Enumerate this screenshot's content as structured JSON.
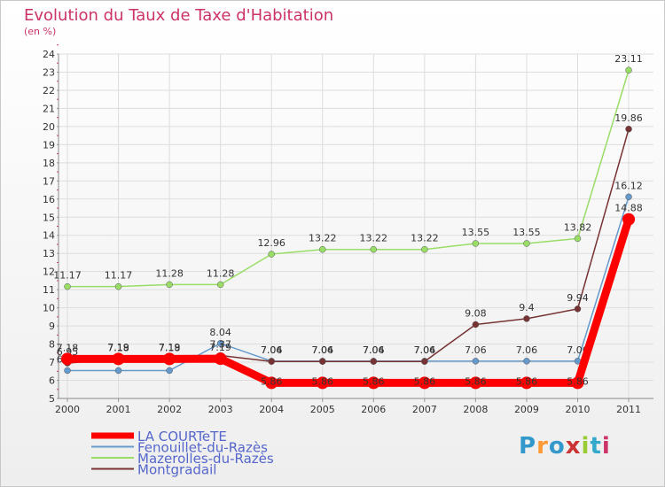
{
  "chart_data": {
    "type": "line",
    "title": "Evolution du Taux de Taxe d'Habitation",
    "subtitle": "(en %)",
    "xlabel": "",
    "ylabel": "",
    "categories": [
      "2000",
      "2001",
      "2002",
      "2003",
      "2004",
      "2005",
      "2006",
      "2007",
      "2008",
      "2009",
      "2010",
      "2011"
    ],
    "ylim": [
      5,
      24
    ],
    "yticks": [
      5,
      6,
      7,
      8,
      9,
      10,
      11,
      12,
      13,
      14,
      15,
      16,
      17,
      18,
      19,
      20,
      21,
      22,
      23,
      24
    ],
    "grid": true,
    "legend_position": "bottom-left",
    "series": [
      {
        "name": "LA COURTeTE",
        "color": "#ff0000",
        "values": [
          7.18,
          7.18,
          7.18,
          7.19,
          5.86,
          5.86,
          5.86,
          5.86,
          5.86,
          5.86,
          5.86,
          14.88
        ],
        "labels": [
          "7.18",
          "7.18",
          "7.18",
          "7.19",
          "5.86",
          "5.86",
          "5.86",
          "5.86",
          "5.86",
          "5.86",
          "5.86",
          "14.88"
        ]
      },
      {
        "name": "Fenouillet-du-Razès",
        "color": "#6699cc",
        "values": [
          6.54,
          6.54,
          6.54,
          8.04,
          7.06,
          7.06,
          7.06,
          7.06,
          7.06,
          7.06,
          7.06,
          16.12
        ],
        "labels": [
          "6.54",
          "6.54",
          "6.54",
          "8.04",
          "7.06",
          "7.06",
          "7.06",
          "7.06",
          "7.06",
          "7.06",
          "7.06",
          "16.12"
        ]
      },
      {
        "name": "Mazerolles-du-Razès",
        "color": "#99dd66",
        "values": [
          11.17,
          11.17,
          11.28,
          11.28,
          12.96,
          13.22,
          13.22,
          13.22,
          13.55,
          13.55,
          13.82,
          23.11
        ],
        "labels": [
          "11.17",
          "11.17",
          "11.28",
          "11.28",
          "12.96",
          "13.22",
          "13.22",
          "13.22",
          "13.55",
          "13.55",
          "13.82",
          "23.11"
        ]
      },
      {
        "name": "Montgradail",
        "color": "#773333",
        "values": [
          6.95,
          7.19,
          7.19,
          7.37,
          7.04,
          7.04,
          7.04,
          7.04,
          9.08,
          9.4,
          9.94,
          19.86
        ],
        "labels": [
          "6.95",
          "7.19",
          "7.19",
          "7.37",
          "7.04",
          "7.04",
          "7.04",
          "7.04",
          "9.08",
          "9.4",
          "9.94",
          "19.86"
        ]
      }
    ]
  },
  "legend": {
    "items": [
      {
        "label": "LA COURTeTE",
        "color": "#ff0000"
      },
      {
        "label": "Fenouillet-du-Razès",
        "color": "#6699cc"
      },
      {
        "label": "Mazerolles-du-Razès",
        "color": "#99dd66"
      },
      {
        "label": "Montgradail",
        "color": "#773333"
      }
    ]
  },
  "logo": {
    "text": "Proxiti"
  }
}
